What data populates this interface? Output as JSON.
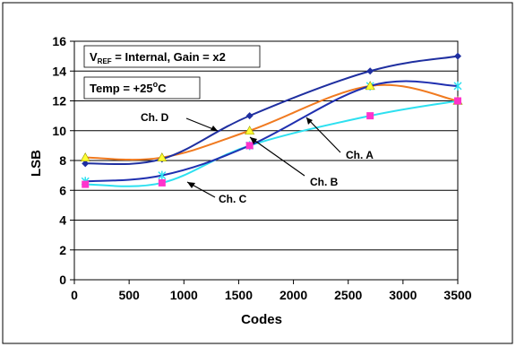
{
  "chart_data": {
    "type": "line",
    "xlabel": "Codes",
    "ylabel": "LSB",
    "xlim": [
      0,
      3500
    ],
    "ylim": [
      0,
      16
    ],
    "x_ticks": [
      0,
      500,
      1000,
      1500,
      2000,
      2500,
      3000,
      3500
    ],
    "y_ticks": [
      0,
      2,
      4,
      6,
      8,
      10,
      12,
      14,
      16
    ],
    "grid": "horizontal",
    "annotation_line1_main": "V",
    "annotation_line1_sub": "REF",
    "annotation_line1_rest": " = Internal, Gain = x2",
    "annotation_line2_main": "Temp = +25",
    "annotation_line2_sup": "o",
    "annotation_line2_rest": "C",
    "series": [
      {
        "name": "Ch. D",
        "color": "#1f2fa0",
        "marker": "diamond",
        "x": [
          100,
          800,
          1600,
          2700,
          3500
        ],
        "y": [
          7.8,
          8.1,
          11.0,
          14.0,
          15.0
        ]
      },
      {
        "name": "Ch. A",
        "color": "#f07a20",
        "marker": "triangle",
        "x": [
          100,
          800,
          1600,
          2700,
          3500
        ],
        "y": [
          8.2,
          8.2,
          10.0,
          13.0,
          12.0
        ]
      },
      {
        "name": "Ch. B",
        "color": "#2030b0",
        "marker": "asterisk",
        "x": [
          100,
          800,
          1600,
          2700,
          3500
        ],
        "y": [
          6.6,
          7.0,
          9.0,
          13.0,
          13.0
        ]
      },
      {
        "name": "Ch. C",
        "color": "#2de0f0",
        "marker": "square",
        "marker_color": "#ff33cc",
        "x": [
          100,
          800,
          1600,
          2700,
          3500
        ],
        "y": [
          6.4,
          6.5,
          9.0,
          11.0,
          12.0
        ]
      }
    ]
  }
}
